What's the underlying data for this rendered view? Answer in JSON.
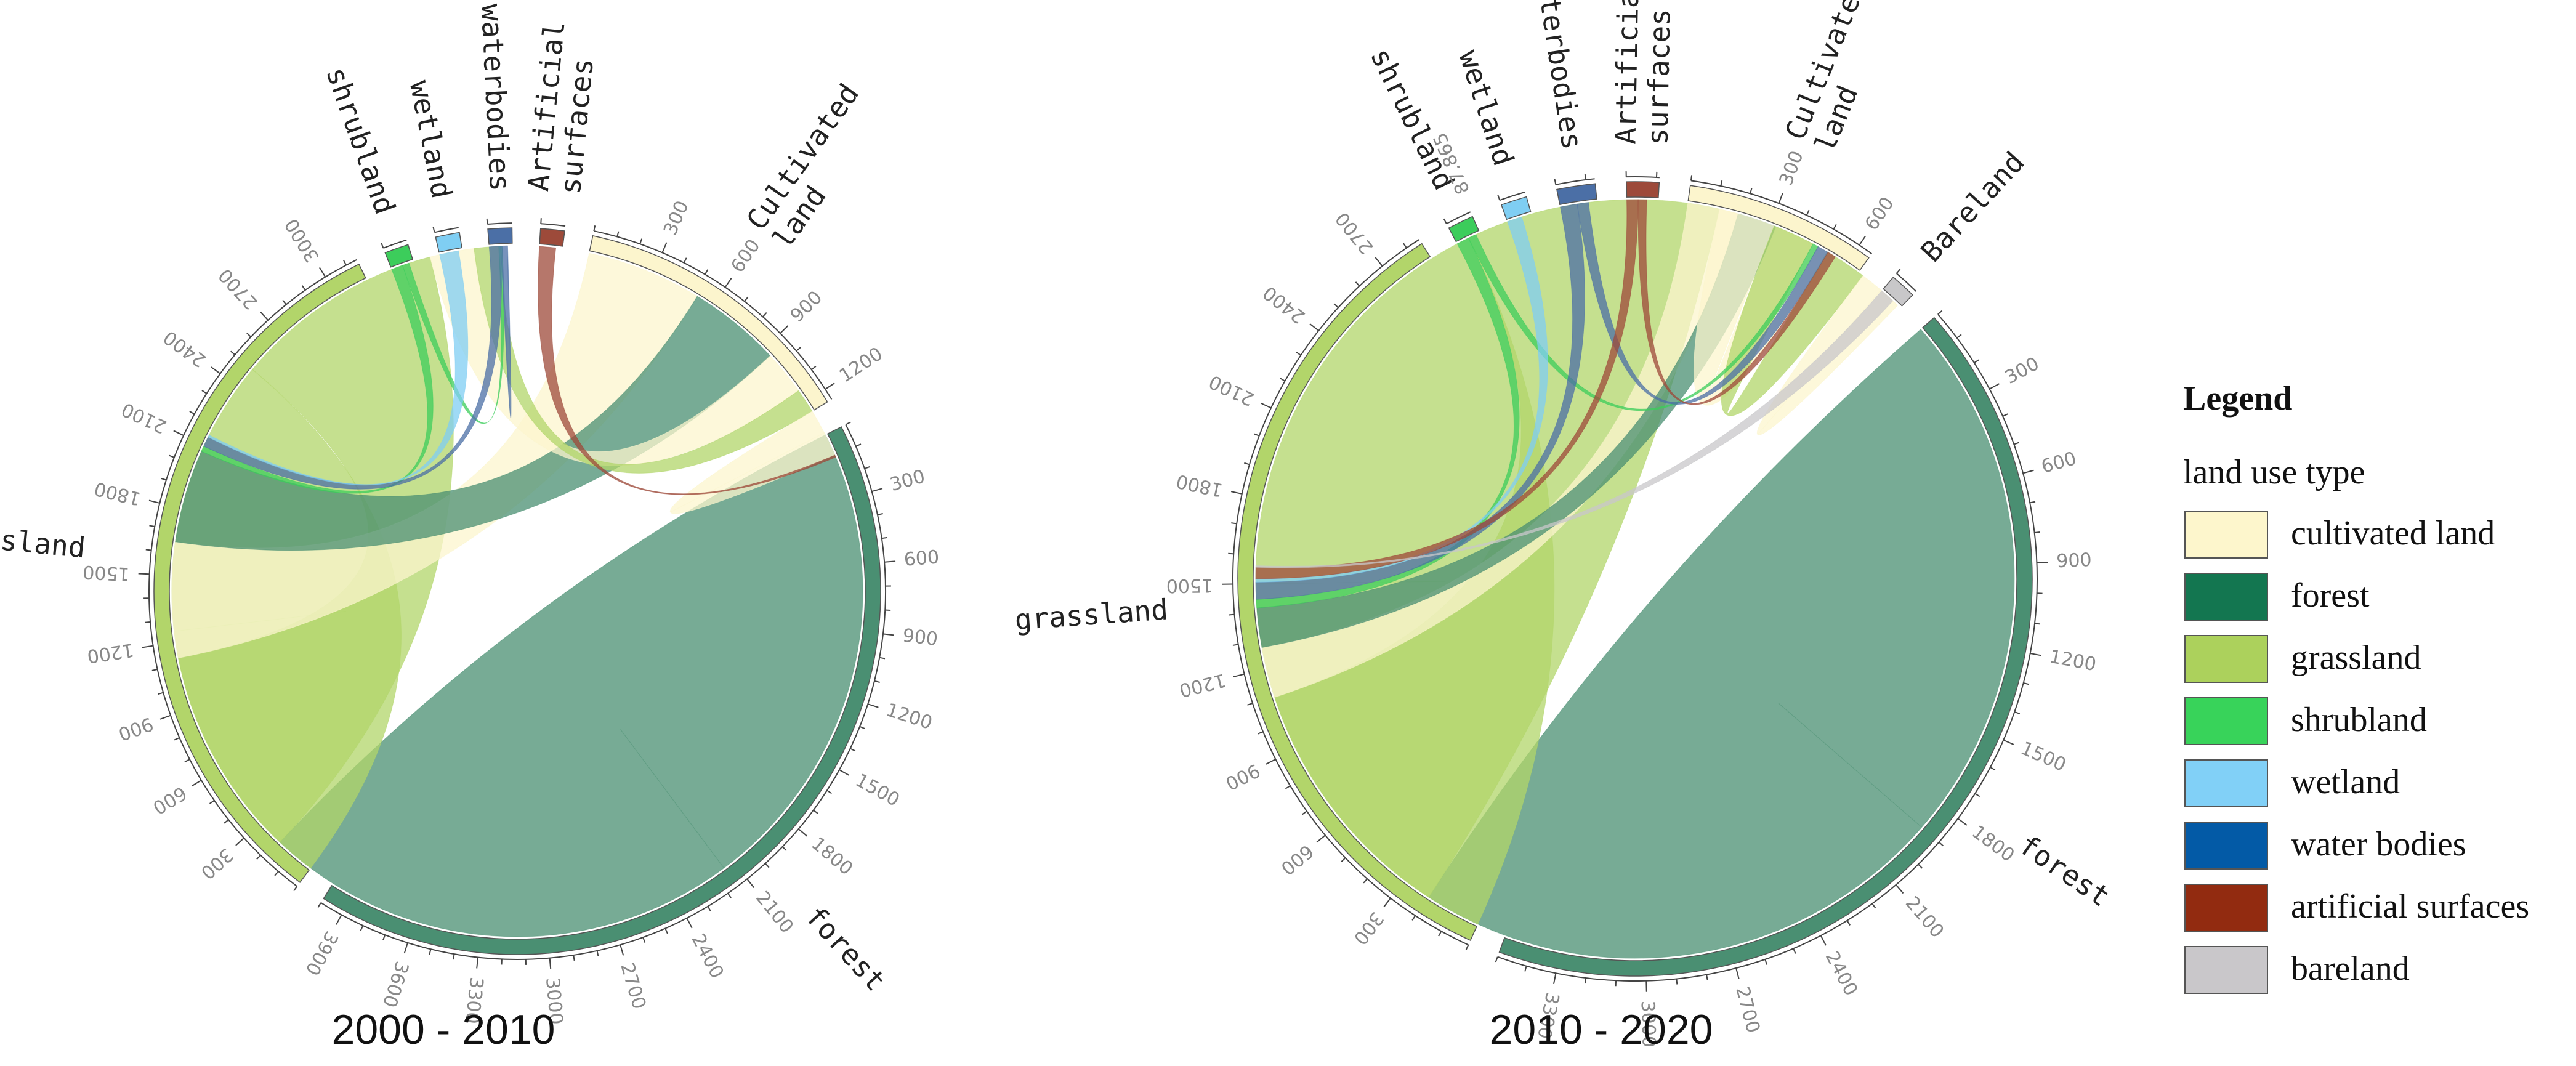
{
  "chart_data": [
    {
      "type": "chord",
      "title": "2000 - 2010",
      "segments": [
        {
          "key": "cultivated",
          "label": [
            "Cultivated",
            "land"
          ],
          "total": 1250,
          "ticks": [
            300,
            600,
            900,
            1200
          ]
        },
        {
          "key": "forest",
          "label": [
            "forest"
          ],
          "total": 4000,
          "ticks": [
            300,
            600,
            900,
            1200,
            1500,
            1800,
            2100,
            2400,
            2700,
            3000,
            3300,
            3600,
            3900
          ]
        },
        {
          "key": "grassland",
          "label": [
            "grassland"
          ],
          "total": 3150,
          "ticks": [
            300,
            600,
            900,
            1200,
            1500,
            1800,
            2100,
            2400,
            2700,
            3000
          ]
        },
        {
          "key": "shrubland",
          "label": [
            "shrubland"
          ],
          "total": 50,
          "ticks": []
        },
        {
          "key": "wetland",
          "label": [
            "wetland"
          ],
          "total": 12,
          "ticks": []
        },
        {
          "key": "waterbodies",
          "label": [
            "waterbodies"
          ],
          "total": 90,
          "ticks": []
        },
        {
          "key": "artificial",
          "label": [
            "Artificial",
            "surfaces"
          ],
          "total": 14,
          "ticks": []
        }
      ],
      "flows": [
        {
          "from": "forest",
          "to": "forest",
          "value": 2150
        },
        {
          "from": "grassland",
          "to": "grassland",
          "value": 1250
        },
        {
          "from": "grassland",
          "to": "forest",
          "value": 950
        },
        {
          "from": "cultivated",
          "to": "forest",
          "value": 520
        },
        {
          "from": "forest",
          "to": "cultivated",
          "value": 420
        },
        {
          "from": "cultivated",
          "to": "grassland",
          "value": 200
        },
        {
          "from": "grassland",
          "to": "cultivated",
          "value": 110
        },
        {
          "from": "cultivated",
          "to": "cultivated",
          "value": 110
        },
        {
          "from": "shrubland",
          "to": "forest",
          "value": 25
        },
        {
          "from": "shrubland",
          "to": "grassland",
          "value": 15
        },
        {
          "from": "waterbodies",
          "to": "forest",
          "value": 45
        },
        {
          "from": "waterbodies",
          "to": "grassland",
          "value": 25
        },
        {
          "from": "wetland",
          "to": "forest",
          "value": 10
        },
        {
          "from": "artificial",
          "to": "cultivated",
          "value": 10
        }
      ]
    },
    {
      "type": "chord",
      "title": "2010 - 2020",
      "segments": [
        {
          "key": "cultivated",
          "label": [
            "Cultivated",
            "land"
          ],
          "total": 650,
          "ticks": [
            300,
            600
          ]
        },
        {
          "key": "bareland",
          "label": [
            "Bareland"
          ],
          "total": 10,
          "ticks": []
        },
        {
          "key": "forest",
          "label": [
            "forest"
          ],
          "total": 3500,
          "ticks": [
            300,
            600,
            900,
            1200,
            1500,
            1800,
            2100,
            2400,
            2700,
            3000,
            3300
          ]
        },
        {
          "key": "grassland",
          "label": [
            "grassland"
          ],
          "total": 2850,
          "ticks": [
            300,
            600,
            900,
            1200,
            1500,
            1800,
            2100,
            2400,
            2700
          ]
        },
        {
          "key": "shrubland",
          "label": [
            "shrubland"
          ],
          "total": 60,
          "ticks": []
        },
        {
          "key": "wetland",
          "label": [
            "wetland"
          ],
          "total": 20,
          "ticks": []
        },
        {
          "key": "waterbodies",
          "label": [
            "waterbodies"
          ],
          "total": 130,
          "ticks": []
        },
        {
          "key": "artificial",
          "label": [
            "Artificial",
            "surfaces"
          ],
          "total": 110,
          "ticks": []
        }
      ],
      "extra_tick_labels": [
        "87.865"
      ],
      "flows": [
        {
          "from": "forest",
          "to": "forest",
          "value": 1900
        },
        {
          "from": "grassland",
          "to": "grassland",
          "value": 1500
        },
        {
          "from": "grassland",
          "to": "forest",
          "value": 900
        },
        {
          "from": "cultivated",
          "to": "forest",
          "value": 180
        },
        {
          "from": "forest",
          "to": "cultivated",
          "value": 140
        },
        {
          "from": "cultivated",
          "to": "grassland",
          "value": 200
        },
        {
          "from": "grassland",
          "to": "cultivated",
          "value": 150
        },
        {
          "from": "cultivated",
          "to": "cultivated",
          "value": 80
        },
        {
          "from": "shrubland",
          "to": "forest",
          "value": 30
        },
        {
          "from": "shrubland",
          "to": "grassland",
          "value": 20
        },
        {
          "from": "waterbodies",
          "to": "forest",
          "value": 60
        },
        {
          "from": "waterbodies",
          "to": "grassland",
          "value": 40
        },
        {
          "from": "wetland",
          "to": "forest",
          "value": 12
        },
        {
          "from": "artificial",
          "to": "forest",
          "value": 40
        },
        {
          "from": "artificial",
          "to": "grassland",
          "value": 30
        },
        {
          "from": "bareland",
          "to": "forest",
          "value": 6
        }
      ]
    }
  ],
  "colors": {
    "cultivated": "#fcf5cd",
    "forest": "#4a8f72",
    "grassland": "#b2d56a",
    "shrubland": "#3ccd5b",
    "wetland": "#7fcef3",
    "waterbodies": "#4b6fa6",
    "artificial": "#9d4a3a",
    "bareland": "#c8c7c9"
  },
  "legend": {
    "title": "Legend",
    "subtitle": "land use type",
    "items": [
      {
        "label": "cultivated land",
        "color": "#fdf6cc"
      },
      {
        "label": "forest",
        "color": "#137650"
      },
      {
        "label": "grassland",
        "color": "#acd15c"
      },
      {
        "label": "shrubland",
        "color": "#38d35a"
      },
      {
        "label": "wetland",
        "color": "#81d0f7"
      },
      {
        "label": "water bodies",
        "color": "#035aa6"
      },
      {
        "label": "artificial surfaces",
        "color": "#922b10"
      },
      {
        "label": "bareland",
        "color": "#c9c7ca"
      }
    ]
  }
}
